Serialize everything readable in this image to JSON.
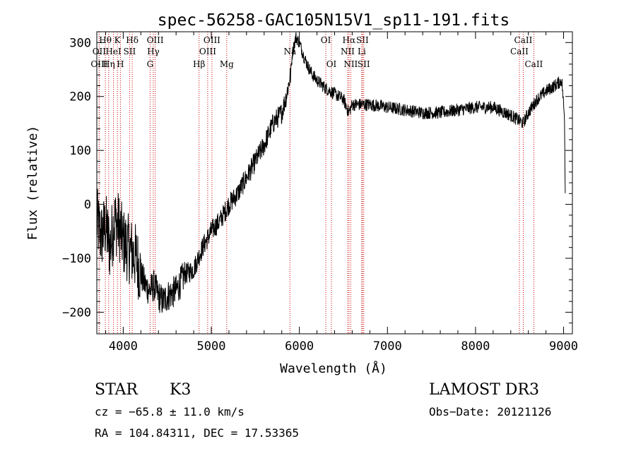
{
  "chart_data": {
    "type": "line",
    "title": "spec-56258-GAC105N15V1_sp11-191.fits",
    "xlabel": "Wavelength (Å)",
    "ylabel": "Flux (relative)",
    "xlim": [
      3700,
      9100
    ],
    "ylim": [
      -240,
      320
    ],
    "xticks": [
      4000,
      5000,
      6000,
      7000,
      8000,
      9000
    ],
    "xtick_labels": [
      "4000",
      "5000",
      "6000",
      "7000",
      "8000",
      "9000"
    ],
    "yticks": [
      -200,
      -100,
      0,
      100,
      200,
      300
    ],
    "ytick_labels": [
      "−200",
      "−100",
      "0",
      "100",
      "200",
      "300"
    ],
    "series": [
      {
        "name": "spectrum",
        "x": [
          3700,
          3750,
          3800,
          3850,
          3900,
          3950,
          4000,
          4050,
          4100,
          4150,
          4200,
          4250,
          4300,
          4350,
          4400,
          4450,
          4500,
          4600,
          4700,
          4800,
          4900,
          5000,
          5100,
          5200,
          5300,
          5400,
          5500,
          5600,
          5700,
          5750,
          5800,
          5850,
          5900,
          5920,
          5960,
          6000,
          6050,
          6100,
          6150,
          6200,
          6300,
          6400,
          6500,
          6560,
          6600,
          6700,
          6800,
          7000,
          7200,
          7400,
          7600,
          7800,
          8000,
          8200,
          8400,
          8500,
          8540,
          8600,
          8700,
          8800,
          8900,
          8980,
          9010,
          9020
        ],
        "y": [
          -30,
          -60,
          -40,
          -80,
          -30,
          -40,
          -70,
          -80,
          -90,
          -100,
          -130,
          -150,
          -160,
          -150,
          -170,
          -180,
          -170,
          -160,
          -130,
          -120,
          -80,
          -50,
          -30,
          0,
          20,
          50,
          80,
          110,
          150,
          160,
          170,
          200,
          240,
          280,
          310,
          300,
          275,
          255,
          240,
          230,
          215,
          205,
          195,
          170,
          185,
          185,
          185,
          180,
          175,
          170,
          170,
          175,
          180,
          180,
          165,
          155,
          150,
          170,
          195,
          210,
          220,
          230,
          160,
          5
        ]
      }
    ],
    "line_labels": [
      {
        "label": "Hθ",
        "x": 3797,
        "row": 1
      },
      {
        "label": "OII",
        "x": 3727,
        "row": 2
      },
      {
        "label": "OIII",
        "x": 3727,
        "row": 3
      },
      {
        "label": "K",
        "x": 3934,
        "row": 1
      },
      {
        "label": "HeI",
        "x": 3889,
        "row": 2
      },
      {
        "label": "Hη",
        "x": 3835,
        "row": 3
      },
      {
        "label": "Hδ",
        "x": 4102,
        "row": 1
      },
      {
        "label": "SII",
        "x": 4072,
        "row": 2
      },
      {
        "label": "H",
        "x": 3968,
        "row": 3
      },
      {
        "label": "OIII",
        "x": 4363,
        "row": 1
      },
      {
        "label": "Hγ",
        "x": 4341,
        "row": 2
      },
      {
        "label": "G",
        "x": 4305,
        "row": 3
      },
      {
        "label": "OIII",
        "x": 5007,
        "row": 1
      },
      {
        "label": "OIII",
        "x": 4959,
        "row": 2
      },
      {
        "label": "Hβ",
        "x": 4861,
        "row": 3
      },
      {
        "label": "Mg",
        "x": 5175,
        "row": 3
      },
      {
        "label": "Na",
        "x": 5893,
        "row": 2
      },
      {
        "label": "OI",
        "x": 6300,
        "row": 1
      },
      {
        "label": "OI",
        "x": 6364,
        "row": 3
      },
      {
        "label": "Hα",
        "x": 6563,
        "row": 1
      },
      {
        "label": "SII",
        "x": 6716,
        "row": 1
      },
      {
        "label": "NII",
        "x": 6548,
        "row": 2
      },
      {
        "label": "Li",
        "x": 6708,
        "row": 2
      },
      {
        "label": "NII",
        "x": 6583,
        "row": 3
      },
      {
        "label": "SII",
        "x": 6731,
        "row": 3
      },
      {
        "label": "CaII",
        "x": 8542,
        "row": 1
      },
      {
        "label": "CaII",
        "x": 8498,
        "row": 2
      },
      {
        "label": "CaII",
        "x": 8662,
        "row": 3
      }
    ],
    "grid": false,
    "legend": "none"
  },
  "info": {
    "class": "STAR",
    "subclass": "K3",
    "survey": "LAMOST DR3",
    "cz": "cz = −65.8 ± 11.0 km/s",
    "obs_date": "Obs−Date: 20121126",
    "coords": "RA = 104.84311, DEC =  17.53365"
  },
  "colors": {
    "spectrum": "#000000",
    "line_marker": "#cc0000",
    "axes": "#000000"
  }
}
